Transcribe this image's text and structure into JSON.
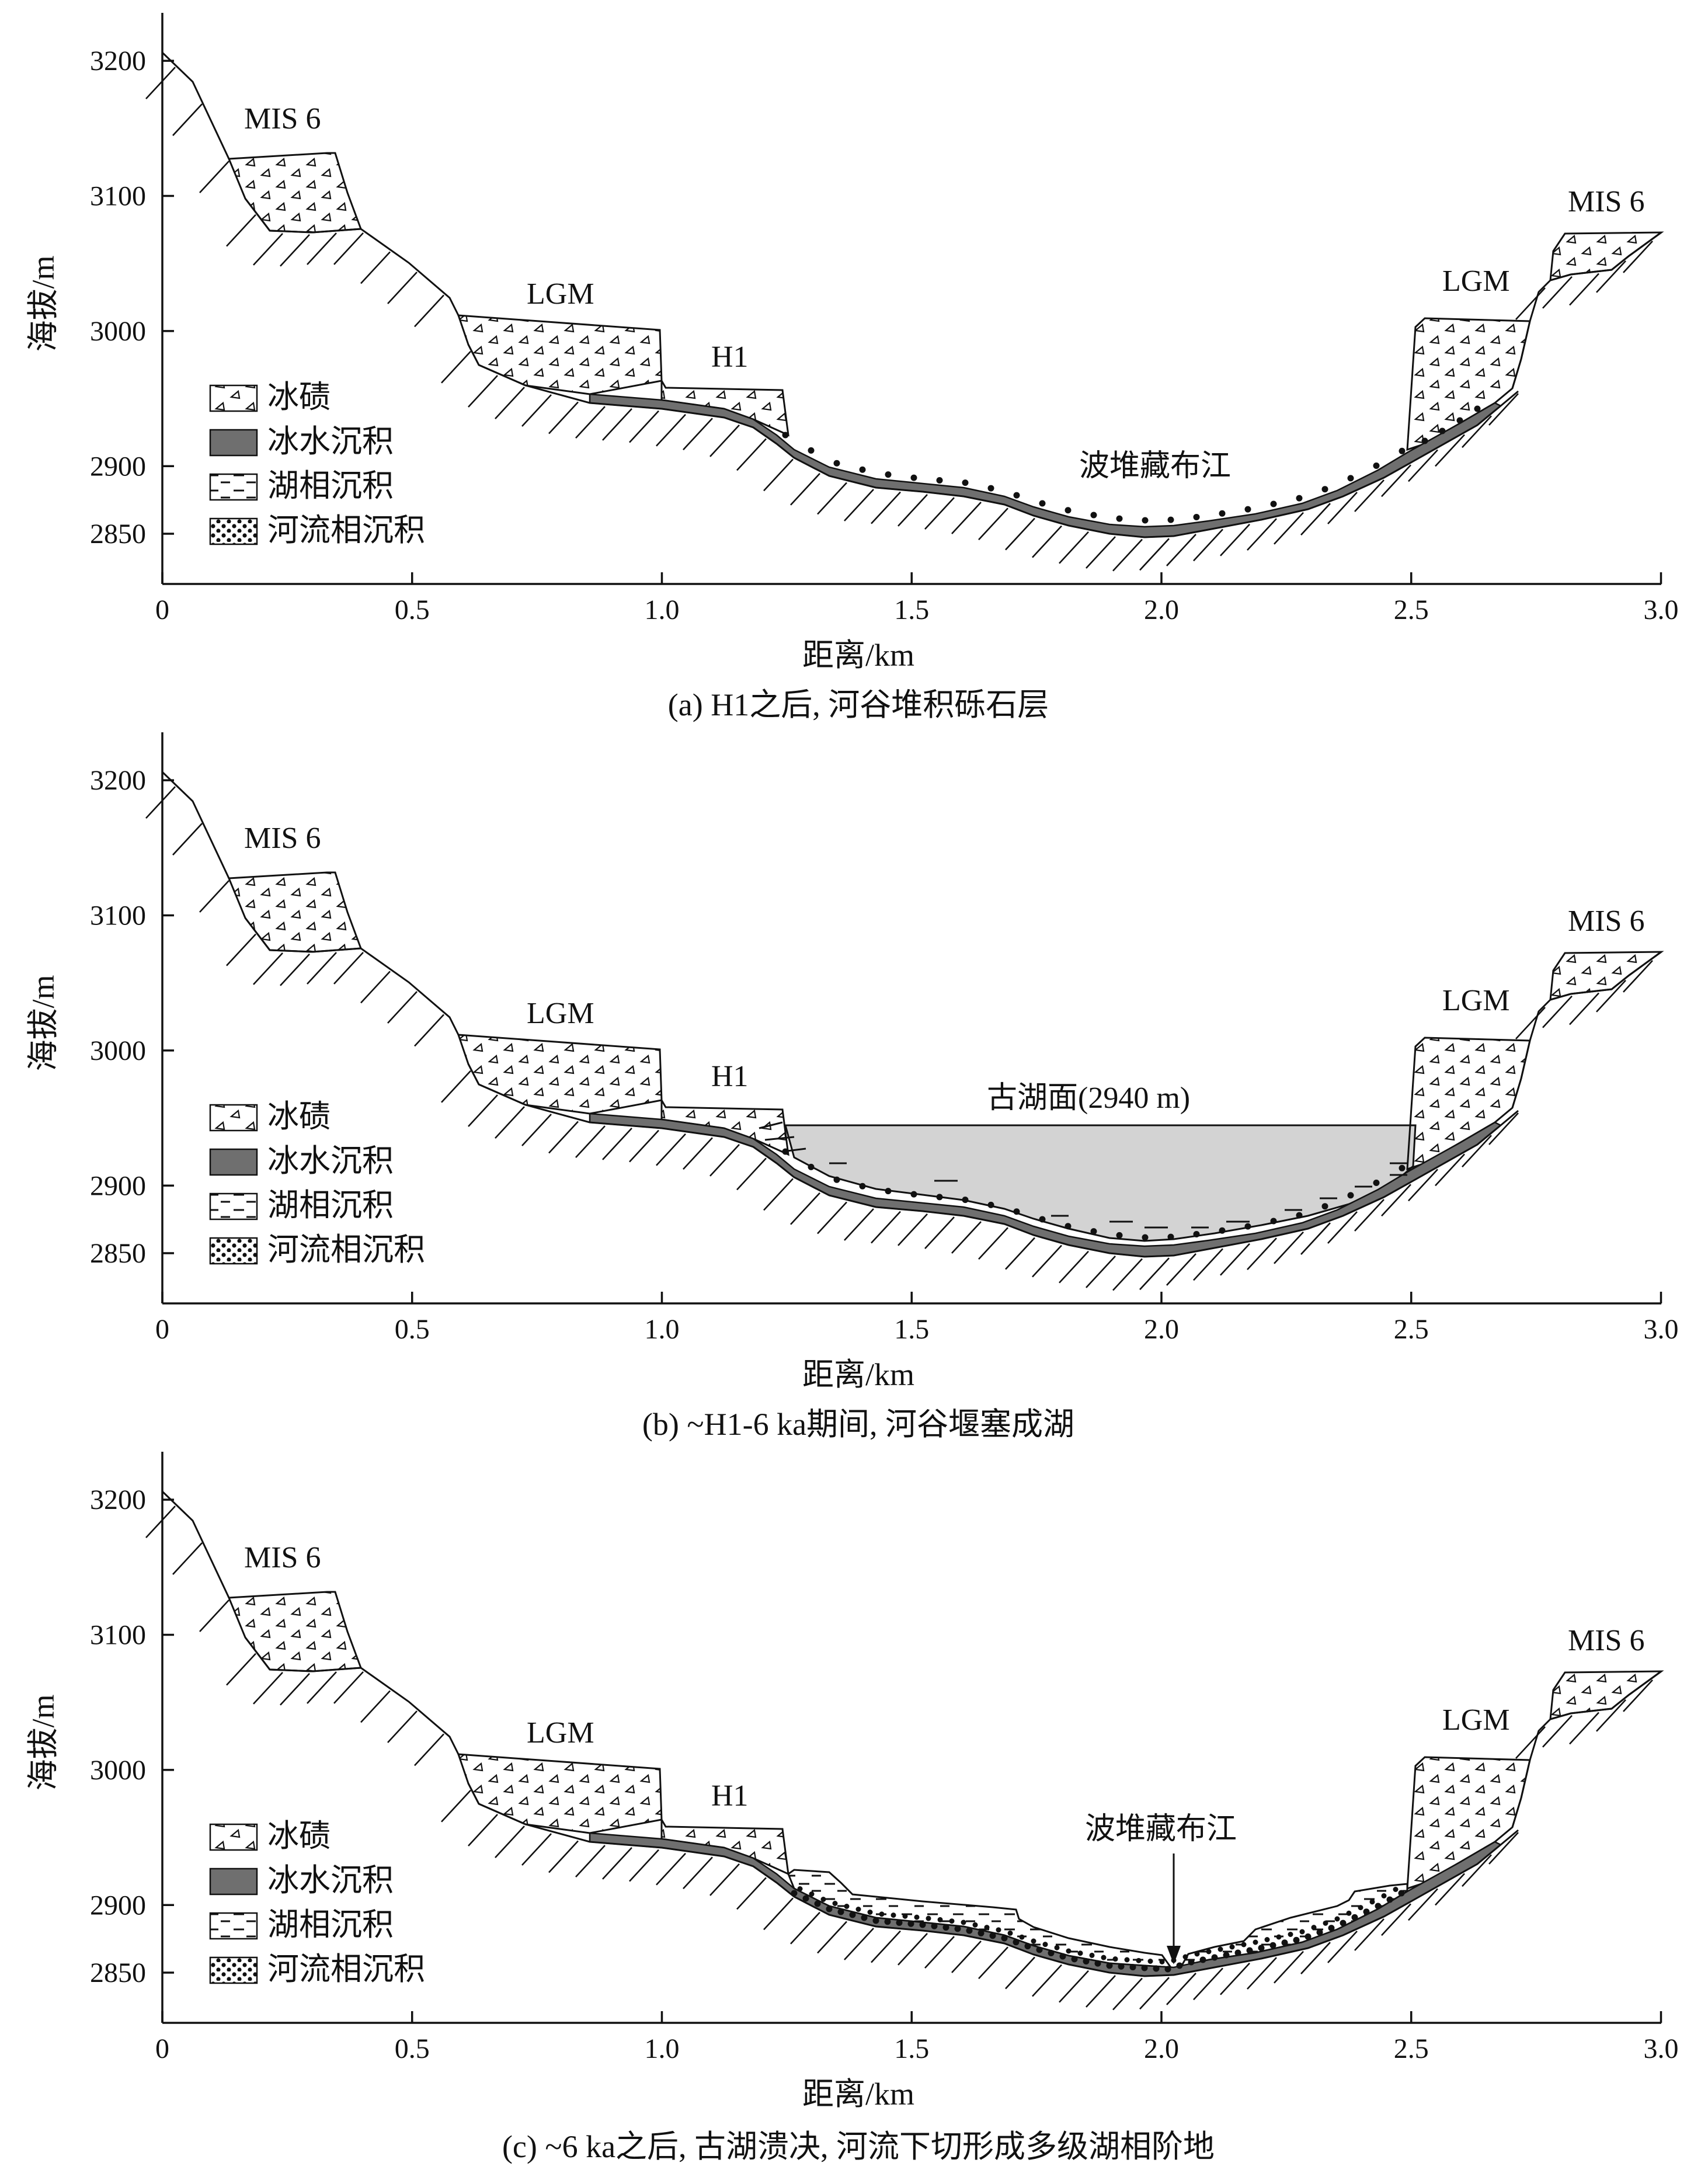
{
  "colors": {
    "ink": "#111111",
    "glacio_fluvial": "#6f6f6f",
    "lake_water": "#d3d3d3",
    "background": "#ffffff"
  },
  "x_axis": {
    "label": "距离/km",
    "ticks": [
      "0",
      "0.5",
      "1.0",
      "1.5",
      "2.0",
      "2.5",
      "3.0"
    ],
    "range_km": [
      0,
      3.0
    ]
  },
  "y_axis": {
    "label": "海拔/m",
    "ticks": [
      "2850",
      "2900",
      "3000",
      "3100",
      "3200"
    ],
    "range_m": [
      2830,
      3240
    ]
  },
  "legend": [
    {
      "key": "moraine",
      "label": "冰碛"
    },
    {
      "key": "glacio_fluvial",
      "label": "冰水沉积"
    },
    {
      "key": "lacustrine",
      "label": "湖相沉积"
    },
    {
      "key": "fluvial",
      "label": "河流相沉积"
    }
  ],
  "panels": [
    {
      "id": "a",
      "caption": "(a) H1之后, 河谷堆积砾石层",
      "labels": {
        "mis6_left": "MIS 6",
        "mis6_right": "MIS 6",
        "lgm_left": "LGM",
        "lgm_right": "LGM",
        "h1": "H1",
        "river": "波堆藏布江"
      }
    },
    {
      "id": "b",
      "caption": "(b) ~H1-6 ka期间, 河谷堰塞成湖",
      "labels": {
        "mis6_left": "MIS 6",
        "mis6_right": "MIS 6",
        "lgm_left": "LGM",
        "lgm_right": "LGM",
        "h1": "H1",
        "lake": "古湖面(2940 m)"
      }
    },
    {
      "id": "c",
      "caption": "(c) ~6 ka之后, 古湖溃决, 河流下切形成多级湖相阶地",
      "labels": {
        "mis6_left": "MIS 6",
        "mis6_right": "MIS 6",
        "lgm_left": "LGM",
        "lgm_right": "LGM",
        "h1": "H1",
        "river": "波堆藏布江"
      }
    }
  ]
}
